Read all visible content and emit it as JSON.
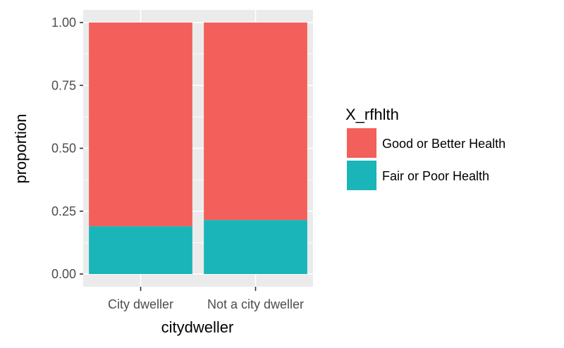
{
  "chart_data": {
    "type": "bar",
    "stacked": true,
    "xlabel": "citydweller",
    "ylabel": "proportion",
    "ylim": [
      0,
      1.05
    ],
    "y_ticks": [
      "0.00",
      "0.25",
      "0.50",
      "0.75",
      "1.00"
    ],
    "y_tick_values": [
      0,
      0.25,
      0.5,
      0.75,
      1.0
    ],
    "categories": [
      "City dweller",
      "Not a city dweller"
    ],
    "series": [
      {
        "name": "Fair or Poor Health",
        "values": [
          0.19,
          0.215
        ],
        "color": "#19B5B8"
      },
      {
        "name": "Good or Better Health",
        "values": [
          0.81,
          0.785
        ],
        "color": "#F35F5A"
      }
    ],
    "legend": {
      "title": "X_rfhlth",
      "position": "right",
      "entries": [
        "Good or Better Health",
        "Fair or Poor Health"
      ]
    },
    "grid": true,
    "panel_background": "#EBEBEB"
  }
}
